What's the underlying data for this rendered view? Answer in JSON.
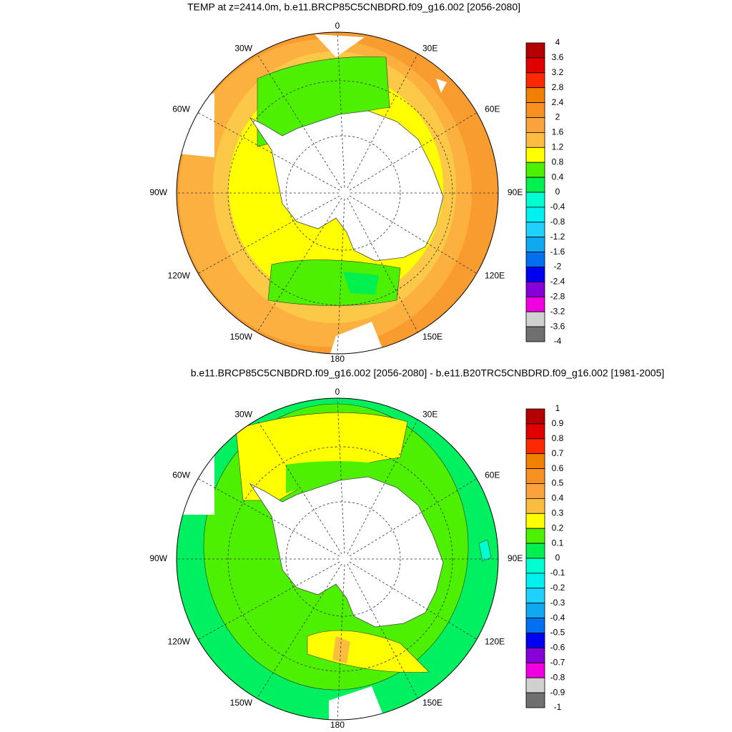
{
  "panels": [
    {
      "title": "TEMP at z=2414.0m, b.e11.BRCP85C5CNBDRD.f09_g16.002 [2056-2080]",
      "lon_labels": [
        "0",
        "30E",
        "60E",
        "90E",
        "120E",
        "150E",
        "180",
        "150W",
        "120W",
        "90W",
        "60W",
        "30W"
      ],
      "colorbar": {
        "levels": [
          4,
          3.6,
          3.2,
          2.8,
          2.4,
          2,
          1.6,
          1.2,
          0.8,
          0.4,
          0,
          -0.4,
          -0.8,
          -1.2,
          -1.6,
          -2,
          -2.4,
          -2.8,
          -3.2,
          -3.6,
          -4
        ],
        "colors": [
          "#b40000",
          "#e00000",
          "#ff2800",
          "#f08000",
          "#f89020",
          "#fca23c",
          "#fcbc40",
          "#ffff00",
          "#4cf000",
          "#00f050",
          "#00ffd0",
          "#00f0f0",
          "#20d0ff",
          "#10a8f0",
          "#0070f0",
          "#0000f0",
          "#8800d8",
          "#f000e0",
          "#d0d0d0",
          "#707070"
        ]
      }
    },
    {
      "title": "b.e11.BRCP85C5CNBDRD.f09_g16.002 [2056-2080] - b.e11.B20TRC5CNBDRD.f09_g16.002 [1981-2005]",
      "lon_labels": [
        "0",
        "30E",
        "60E",
        "90E",
        "120E",
        "150E",
        "180",
        "150W",
        "120W",
        "90W",
        "60W",
        "30W"
      ],
      "colorbar": {
        "levels": [
          1,
          0.9,
          0.8,
          0.7,
          0.6,
          0.5,
          0.4,
          0.3,
          0.2,
          0.1,
          0,
          -0.1,
          -0.2,
          -0.3,
          -0.4,
          -0.5,
          -0.6,
          -0.7,
          -0.8,
          -0.9,
          -1
        ],
        "colors": [
          "#b40000",
          "#e00000",
          "#ff2800",
          "#f08000",
          "#f89020",
          "#fca23c",
          "#fcbc40",
          "#ffff00",
          "#4cf000",
          "#00f050",
          "#00ffd0",
          "#00f0f0",
          "#20d0ff",
          "#10a8f0",
          "#0070f0",
          "#0000f0",
          "#8800d8",
          "#f000e0",
          "#d0d0d0",
          "#707070"
        ]
      }
    }
  ]
}
